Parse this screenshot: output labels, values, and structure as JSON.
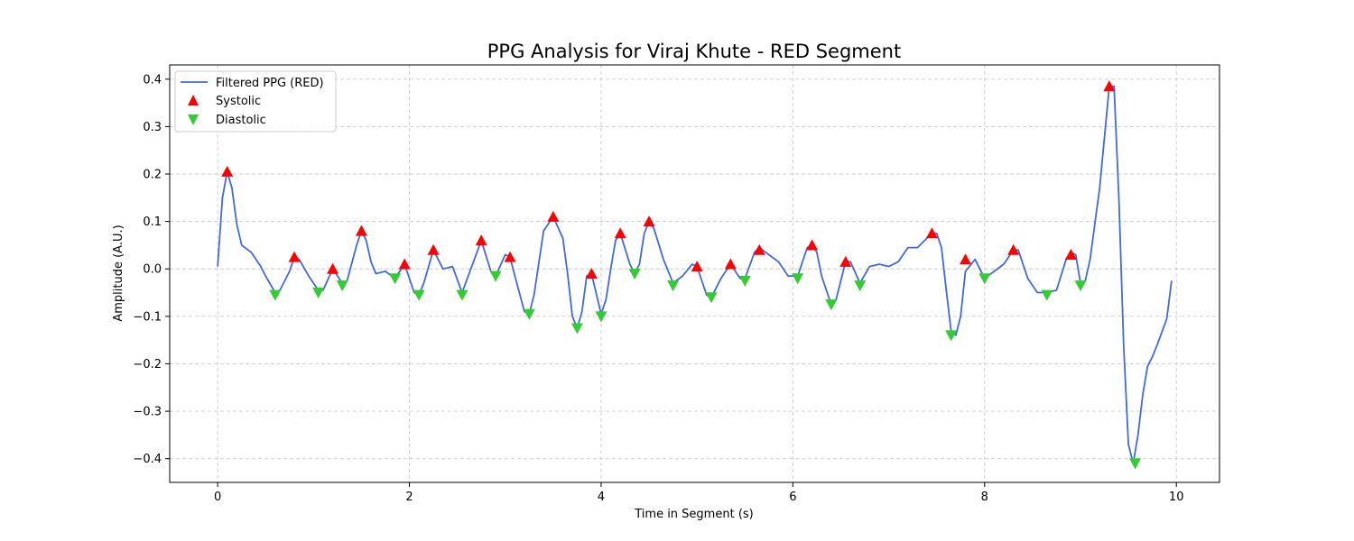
{
  "chart_data": {
    "type": "line",
    "title": "PPG Analysis for Viraj Khute - RED Segment",
    "xlabel": "Time in Segment (s)",
    "ylabel": "Amplitude (A.U.)",
    "xlim": [
      -0.5,
      10.45
    ],
    "ylim": [
      -0.45,
      0.43
    ],
    "xticks": [
      0,
      2,
      4,
      6,
      8,
      10
    ],
    "xtick_labels": [
      "0",
      "2",
      "4",
      "6",
      "8",
      "10"
    ],
    "yticks": [
      0.4,
      0.3,
      0.2,
      0.1,
      0.0,
      -0.1,
      -0.2,
      -0.3,
      -0.4
    ],
    "ytick_labels": [
      "0.4",
      "0.3",
      "0.2",
      "0.1",
      "0.0",
      "−0.1",
      "−0.2",
      "−0.3",
      "−0.4"
    ],
    "grid": true,
    "legend_position": "top-left",
    "series": [
      {
        "name": "Filtered PPG (RED)",
        "kind": "line",
        "color": "#4169e1",
        "x": [
          0.0,
          0.05,
          0.1,
          0.15,
          0.2,
          0.25,
          0.35,
          0.45,
          0.5,
          0.6,
          0.65,
          0.75,
          0.8,
          0.85,
          0.95,
          1.05,
          1.1,
          1.2,
          1.3,
          1.35,
          1.45,
          1.5,
          1.55,
          1.6,
          1.65,
          1.75,
          1.85,
          1.95,
          2.05,
          2.1,
          2.15,
          2.25,
          2.35,
          2.45,
          2.55,
          2.65,
          2.75,
          2.85,
          2.9,
          3.0,
          3.05,
          3.1,
          3.2,
          3.25,
          3.3,
          3.4,
          3.5,
          3.6,
          3.65,
          3.7,
          3.75,
          3.8,
          3.85,
          3.9,
          4.0,
          4.05,
          4.1,
          4.15,
          4.2,
          4.3,
          4.35,
          4.4,
          4.45,
          4.5,
          4.55,
          4.65,
          4.75,
          4.85,
          4.95,
          5.0,
          5.1,
          5.15,
          5.25,
          5.35,
          5.45,
          5.5,
          5.6,
          5.65,
          5.75,
          5.85,
          5.95,
          6.05,
          6.15,
          6.2,
          6.25,
          6.3,
          6.4,
          6.45,
          6.55,
          6.6,
          6.7,
          6.8,
          6.9,
          7.0,
          7.1,
          7.2,
          7.3,
          7.4,
          7.45,
          7.5,
          7.55,
          7.6,
          7.65,
          7.7,
          7.75,
          7.8,
          7.9,
          8.0,
          8.1,
          8.2,
          8.3,
          8.35,
          8.45,
          8.55,
          8.65,
          8.75,
          8.85,
          8.9,
          8.95,
          9.0,
          9.05,
          9.1,
          9.2,
          9.3,
          9.35,
          9.4,
          9.45,
          9.5,
          9.55,
          9.6,
          9.65,
          9.7,
          9.75,
          9.8,
          9.9,
          9.95
        ],
        "values": [
          0.005,
          0.15,
          0.205,
          0.17,
          0.095,
          0.05,
          0.035,
          0.005,
          -0.015,
          -0.05,
          -0.045,
          -0.005,
          0.025,
          0.02,
          -0.015,
          -0.045,
          -0.045,
          0.0,
          -0.03,
          -0.025,
          0.05,
          0.08,
          0.06,
          0.015,
          -0.01,
          -0.005,
          -0.02,
          0.01,
          -0.05,
          -0.055,
          -0.03,
          0.04,
          0.0,
          0.005,
          -0.05,
          0.005,
          0.06,
          -0.005,
          -0.015,
          0.03,
          0.025,
          -0.015,
          -0.09,
          -0.095,
          -0.055,
          0.08,
          0.11,
          0.065,
          -0.01,
          -0.1,
          -0.125,
          -0.09,
          -0.015,
          -0.01,
          -0.095,
          -0.065,
          0.0,
          0.06,
          0.075,
          0.01,
          -0.01,
          0.01,
          0.075,
          0.1,
          0.085,
          0.02,
          -0.03,
          -0.015,
          0.01,
          0.005,
          -0.055,
          -0.06,
          -0.02,
          0.01,
          -0.02,
          -0.02,
          0.035,
          0.045,
          0.03,
          0.015,
          -0.015,
          -0.015,
          0.045,
          0.05,
          0.035,
          -0.015,
          -0.075,
          -0.065,
          0.015,
          0.015,
          -0.03,
          0.005,
          0.01,
          0.005,
          0.015,
          0.045,
          0.045,
          0.065,
          0.075,
          0.075,
          0.045,
          -0.045,
          -0.13,
          -0.14,
          -0.1,
          -0.005,
          0.02,
          -0.02,
          -0.005,
          0.01,
          0.04,
          0.04,
          -0.02,
          -0.05,
          -0.05,
          -0.045,
          0.02,
          0.035,
          0.03,
          -0.03,
          -0.025,
          0.02,
          0.17,
          0.385,
          0.385,
          0.15,
          -0.16,
          -0.37,
          -0.41,
          -0.35,
          -0.265,
          -0.205,
          -0.185,
          -0.16,
          -0.105,
          -0.025
        ]
      },
      {
        "name": "Systolic",
        "kind": "marker-up",
        "color": "#ff0000",
        "x": [
          0.1,
          0.8,
          1.2,
          1.5,
          1.95,
          2.25,
          2.75,
          3.05,
          3.5,
          3.9,
          4.2,
          4.5,
          5.0,
          5.35,
          5.65,
          6.2,
          6.55,
          7.45,
          7.8,
          8.3,
          8.9,
          9.3
        ],
        "values": [
          0.205,
          0.025,
          0.0,
          0.08,
          0.01,
          0.04,
          0.06,
          0.025,
          0.11,
          -0.01,
          0.075,
          0.1,
          0.005,
          0.01,
          0.04,
          0.05,
          0.015,
          0.075,
          0.02,
          0.04,
          0.03,
          0.385
        ]
      },
      {
        "name": "Diastolic",
        "kind": "marker-down",
        "color": "#33cc33",
        "x": [
          0.6,
          1.05,
          1.3,
          1.85,
          2.1,
          2.55,
          2.9,
          3.25,
          3.75,
          4.0,
          4.35,
          4.75,
          5.15,
          5.5,
          6.05,
          6.4,
          6.7,
          7.65,
          8.0,
          8.65,
          9.0,
          9.57
        ],
        "values": [
          -0.055,
          -0.05,
          -0.035,
          -0.02,
          -0.055,
          -0.055,
          -0.015,
          -0.095,
          -0.125,
          -0.1,
          -0.01,
          -0.035,
          -0.06,
          -0.025,
          -0.02,
          -0.075,
          -0.035,
          -0.14,
          -0.02,
          -0.055,
          -0.035,
          -0.41
        ]
      }
    ]
  }
}
